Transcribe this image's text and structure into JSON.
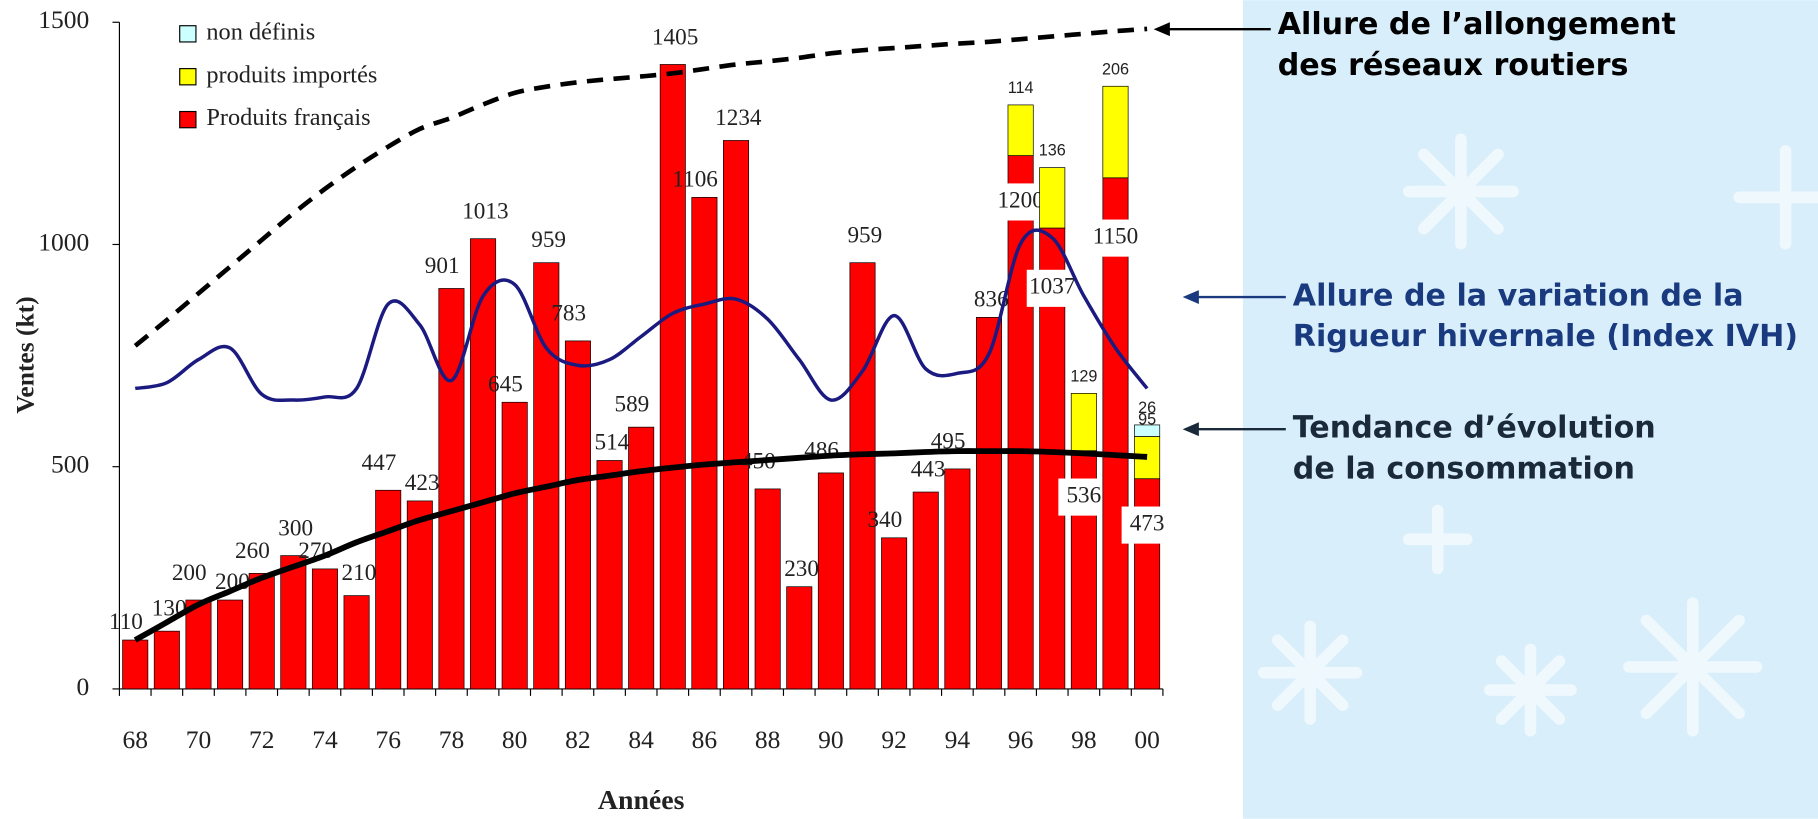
{
  "chart_data": {
    "type": "bar",
    "stacked": true,
    "ylabel": "Ventes (kt)",
    "xlabel": "Années",
    "categories": [
      "68",
      null,
      "70",
      null,
      "72",
      null,
      "74",
      null,
      "76",
      null,
      "78",
      null,
      "80",
      null,
      "82",
      null,
      "84",
      null,
      "86",
      null,
      "88",
      null,
      "90",
      null,
      "92",
      null,
      "94",
      null,
      "96",
      null,
      "98",
      null,
      "00"
    ],
    "series": [
      {
        "name": "Produits français",
        "color": "#ff0000",
        "values": [
          110,
          130,
          200,
          200,
          260,
          300,
          270,
          210,
          447,
          423,
          901,
          1013,
          645,
          959,
          783,
          514,
          589,
          1405,
          1106,
          1234,
          450,
          230,
          486,
          959,
          340,
          443,
          495,
          836,
          1200,
          1037,
          536,
          1150,
          473
        ]
      },
      {
        "name": "produits importés",
        "color": "#ffff00",
        "values": [
          null,
          null,
          null,
          null,
          null,
          null,
          null,
          null,
          null,
          null,
          null,
          null,
          null,
          null,
          null,
          null,
          null,
          null,
          null,
          null,
          null,
          null,
          null,
          null,
          null,
          null,
          null,
          null,
          114,
          136,
          129,
          206,
          95
        ]
      },
      {
        "name": "non définis",
        "color": "#ccffff",
        "values": [
          null,
          null,
          null,
          null,
          null,
          null,
          null,
          null,
          null,
          null,
          null,
          null,
          null,
          null,
          null,
          null,
          null,
          null,
          null,
          null,
          null,
          null,
          null,
          null,
          null,
          null,
          null,
          null,
          null,
          null,
          null,
          null,
          26
        ]
      }
    ],
    "curves": [
      {
        "color": "#000000",
        "dashed": true,
        "values": [
          772,
          830,
          890,
          950,
          1010,
          1070,
          1125,
          1175,
          1220,
          1260,
          1285,
          1315,
          1341,
          1355,
          1365,
          1372,
          1378,
          1385,
          1395,
          1405,
          1412,
          1420,
          1430,
          1437,
          1442,
          1447,
          1452,
          1456,
          1462,
          1468,
          1474,
          1480,
          1485
        ]
      },
      {
        "color": "#1a1a80",
        "dashed": false,
        "values": [
          676,
          689,
          741,
          767,
          663,
          650,
          657,
          676,
          866,
          819,
          694,
          884,
          910,
          767,
          728,
          741,
          793,
          845,
          866,
          877,
          832,
          741,
          650,
          715,
          840,
          720,
          710,
          754,
          1002,
          1015,
          884,
          767,
          676
        ]
      },
      {
        "color": "#000000",
        "dashed": false,
        "values": [
          110,
          150,
          190,
          220,
          250,
          275,
          300,
          330,
          355,
          380,
          400,
          420,
          440,
          455,
          470,
          480,
          490,
          498,
          505,
          510,
          515,
          520,
          525,
          528,
          530,
          533,
          535,
          535,
          535,
          533,
          530,
          526,
          522
        ]
      }
    ],
    "annotations": [
      {
        "color": "#000000",
        "lines": [
          "Allure de l’allongement",
          "des réseaux routiers"
        ]
      },
      {
        "color": "#1a3a80",
        "lines": [
          "Allure de la variation de la",
          "Rigueur hivernale (Index IVH)"
        ]
      },
      {
        "color": "#1a2a3a",
        "lines": [
          "Tendance d’évolution",
          "de la consommation"
        ]
      }
    ],
    "ylim": [
      0,
      1500
    ],
    "yticks": [
      0,
      500,
      1000,
      1500
    ]
  }
}
